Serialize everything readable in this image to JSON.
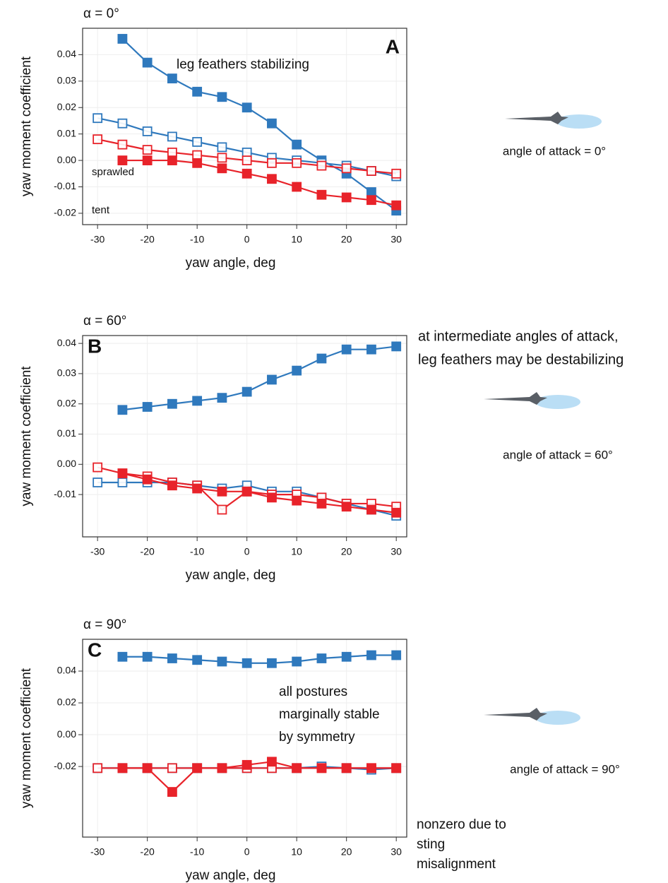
{
  "chart_data": [
    {
      "type": "line",
      "alpha_label": "α = 0°",
      "panel_label": "A",
      "ylabel": "yaw moment coefficient",
      "xlabel": "yaw angle, deg",
      "annotation": [
        "leg feathers stabilizing"
      ],
      "aoa_label": "angle of attack = 0°",
      "x": [
        -30,
        -25,
        -20,
        -15,
        -10,
        -5,
        0,
        5,
        10,
        15,
        20,
        25,
        30
      ],
      "xlim": [
        -33,
        32.1
      ],
      "xticks": [
        -30,
        -20,
        -10,
        0,
        10,
        20,
        30
      ],
      "ylim": [
        -0.0243,
        0.05
      ],
      "yticks": [
        -0.02,
        -0.01,
        {
          "value": 0,
          "label": "0.00"
        },
        0.01,
        0.02,
        0.03,
        0.04
      ],
      "grid": true,
      "legend": true,
      "legend_corner": "lower left",
      "series": [
        {
          "name": "tent",
          "color": "#2f79bd",
          "filled": true,
          "values": [
            null,
            0.046,
            0.037,
            0.031,
            0.026,
            0.024,
            0.02,
            0.014,
            0.006,
            0.0,
            -0.005,
            -0.012,
            -0.019
          ]
        },
        {
          "name": "tent",
          "color": "#2f79bd",
          "filled": false,
          "values": [
            0.016,
            0.014,
            0.011,
            0.009,
            0.007,
            0.005,
            0.003,
            0.001,
            0.0,
            -0.001,
            -0.002,
            -0.004,
            -0.006
          ]
        },
        {
          "name": "sprawled",
          "color": "#e8232a",
          "filled": false,
          "values": [
            0.008,
            0.006,
            0.004,
            0.003,
            0.002,
            0.001,
            0.0,
            -0.001,
            -0.001,
            -0.002,
            -0.003,
            -0.004,
            -0.005
          ]
        },
        {
          "name": "sprawled",
          "color": "#e8232a",
          "filled": true,
          "values": [
            null,
            0.0,
            0.0,
            0.0,
            -0.001,
            -0.003,
            -0.005,
            -0.007,
            -0.01,
            -0.013,
            -0.014,
            -0.015,
            -0.017
          ]
        }
      ]
    },
    {
      "type": "line",
      "alpha_label": "α = 60°",
      "panel_label": "B",
      "ylabel": "yaw moment coefficient",
      "xlabel": "yaw angle, deg",
      "side_note": [
        "at intermediate angles of attack,",
        "leg feathers may be destabilizing"
      ],
      "aoa_label": "angle of attack = 60°",
      "x": [
        -30,
        -25,
        -20,
        -15,
        -10,
        -5,
        0,
        5,
        10,
        15,
        20,
        25,
        30
      ],
      "xlim": [
        -33,
        32.1
      ],
      "xticks": [
        -30,
        -20,
        -10,
        0,
        10,
        20,
        30
      ],
      "ylim": [
        -0.024,
        0.0426
      ],
      "yticks": [
        -0.01,
        {
          "value": 0,
          "label": "0.00"
        },
        0.01,
        0.02,
        0.03,
        0.04
      ],
      "grid": true,
      "legend": false,
      "series": [
        {
          "name": "tent",
          "color": "#2f79bd",
          "filled": true,
          "values": [
            null,
            0.018,
            0.019,
            0.02,
            0.021,
            0.022,
            0.024,
            0.028,
            0.031,
            0.035,
            0.038,
            0.038,
            0.039
          ]
        },
        {
          "name": "tent",
          "color": "#2f79bd",
          "filled": false,
          "values": [
            -0.006,
            -0.006,
            -0.006,
            -0.006,
            -0.007,
            -0.008,
            -0.007,
            -0.009,
            -0.009,
            -0.011,
            -0.013,
            -0.015,
            -0.017
          ]
        },
        {
          "name": "sprawled",
          "color": "#e8232a",
          "filled": false,
          "values": [
            -0.001,
            -0.003,
            -0.004,
            -0.006,
            -0.007,
            -0.015,
            -0.009,
            -0.01,
            -0.01,
            -0.011,
            -0.013,
            -0.013,
            -0.014
          ]
        },
        {
          "name": "sprawled",
          "color": "#e8232a",
          "filled": true,
          "values": [
            null,
            -0.003,
            -0.005,
            -0.007,
            -0.008,
            -0.009,
            -0.009,
            -0.011,
            -0.012,
            -0.013,
            -0.014,
            -0.015,
            -0.016
          ]
        }
      ]
    },
    {
      "type": "line",
      "alpha_label": "α = 90°",
      "panel_label": "C",
      "ylabel": "yaw moment coefficient",
      "xlabel": "yaw angle, deg",
      "annotation": [
        "all postures",
        "marginally stable",
        "by symmetry"
      ],
      "side_note": [
        "nonzero due to",
        "sting",
        "misalignment"
      ],
      "aoa_label": "angle of attack = 90°",
      "x": [
        -30,
        -25,
        -20,
        -15,
        -10,
        -5,
        0,
        5,
        10,
        15,
        20,
        25,
        30
      ],
      "xlim": [
        -33,
        32.1
      ],
      "xticks": [
        -30,
        -20,
        -10,
        0,
        10,
        20,
        30
      ],
      "ylim": [
        -0.0644,
        0.06
      ],
      "yticks": [
        -0.02,
        {
          "value": 0,
          "label": "0.00"
        },
        0.02,
        0.04
      ],
      "grid": true,
      "legend": false,
      "series": [
        {
          "name": "tent",
          "color": "#2f79bd",
          "filled": true,
          "values": [
            null,
            0.049,
            0.049,
            0.048,
            0.047,
            0.046,
            0.045,
            0.045,
            0.046,
            0.048,
            0.049,
            0.05,
            0.05
          ]
        },
        {
          "name": "tent",
          "color": "#2f79bd",
          "filled": false,
          "values": [
            -0.021,
            -0.021,
            -0.021,
            -0.021,
            -0.021,
            -0.021,
            -0.021,
            -0.021,
            -0.021,
            -0.02,
            -0.021,
            -0.022,
            -0.021
          ]
        },
        {
          "name": "sprawled",
          "color": "#e8232a",
          "filled": false,
          "values": [
            -0.021,
            -0.021,
            -0.021,
            -0.021,
            -0.021,
            -0.021,
            -0.021,
            -0.021,
            -0.021,
            -0.021,
            -0.021,
            -0.021,
            -0.021
          ]
        },
        {
          "name": "sprawled",
          "color": "#e8232a",
          "filled": true,
          "values": [
            null,
            -0.021,
            -0.021,
            -0.036,
            -0.021,
            -0.021,
            -0.019,
            -0.017,
            -0.021,
            -0.021,
            -0.021,
            -0.021,
            -0.021
          ]
        }
      ]
    }
  ]
}
